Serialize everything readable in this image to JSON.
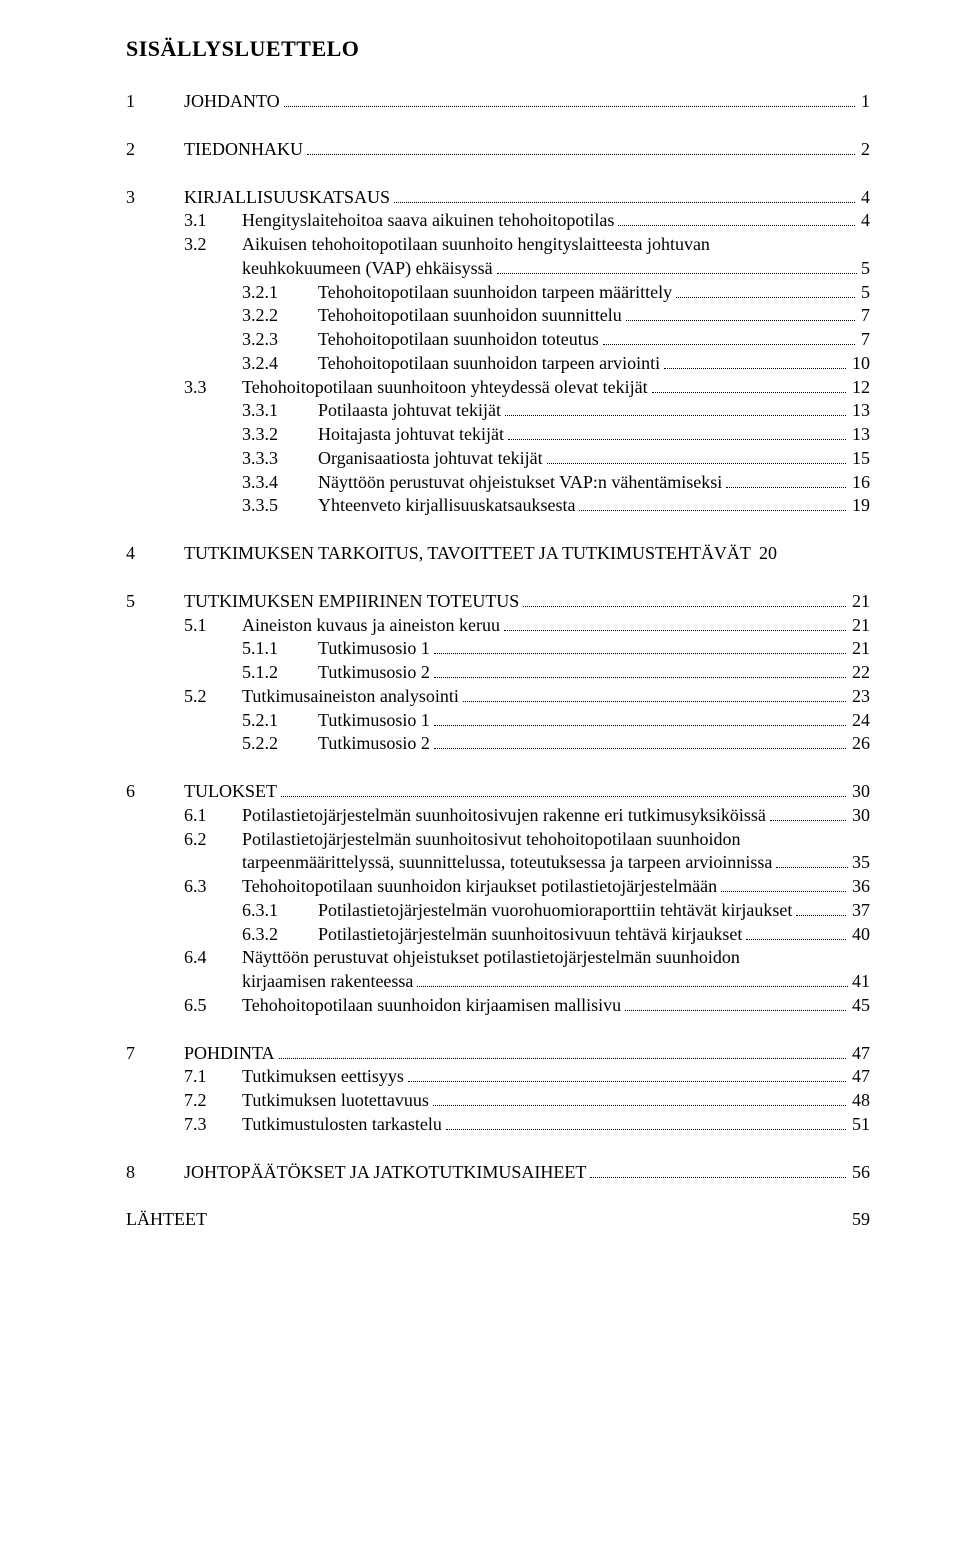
{
  "title": "SISÄLLYSLUETTELO",
  "entries": [
    {
      "type": "item",
      "level": 1,
      "num": "1",
      "label": "JOHDANTO",
      "page": "1"
    },
    {
      "type": "gap"
    },
    {
      "type": "item",
      "level": 1,
      "num": "2",
      "label": "TIEDONHAKU",
      "page": "2"
    },
    {
      "type": "gap"
    },
    {
      "type": "item",
      "level": 1,
      "num": "3",
      "label": "KIRJALLISUUSKATSAUS",
      "page": "4"
    },
    {
      "type": "item",
      "level": 2,
      "num": "3.1",
      "label": "Hengityslaitehoitoa saava aikuinen tehohoitopotilas",
      "page": "4"
    },
    {
      "type": "item-first",
      "level": 2,
      "num": "3.2",
      "label": "Aikuisen tehohoitopotilaan suunhoito hengityslaitteesta johtuvan"
    },
    {
      "type": "item-cont",
      "level": 2,
      "label": "keuhkokuumeen (VAP) ehkäisyssä",
      "page": "5"
    },
    {
      "type": "item",
      "level": 3,
      "num": "3.2.1",
      "label": "Tehohoitopotilaan suunhoidon tarpeen määrittely",
      "page": "5"
    },
    {
      "type": "item",
      "level": 3,
      "num": "3.2.2",
      "label": "Tehohoitopotilaan suunhoidon suunnittelu",
      "page": "7"
    },
    {
      "type": "item",
      "level": 3,
      "num": "3.2.3",
      "label": "Tehohoitopotilaan suunhoidon toteutus",
      "page": "7"
    },
    {
      "type": "item",
      "level": 3,
      "num": "3.2.4",
      "label": "Tehohoitopotilaan suunhoidon tarpeen arviointi",
      "page": "10"
    },
    {
      "type": "item",
      "level": 2,
      "num": "3.3",
      "label": "Tehohoitopotilaan suunhoitoon yhteydessä olevat tekijät",
      "page": "12"
    },
    {
      "type": "item",
      "level": 3,
      "num": "3.3.1",
      "label": "Potilaasta johtuvat tekijät",
      "page": "13"
    },
    {
      "type": "item",
      "level": 3,
      "num": "3.3.2",
      "label": "Hoitajasta johtuvat tekijät",
      "page": "13"
    },
    {
      "type": "item",
      "level": 3,
      "num": "3.3.3",
      "label": "Organisaatiosta johtuvat tekijät",
      "page": "15"
    },
    {
      "type": "item",
      "level": 3,
      "num": "3.3.4",
      "label": "Näyttöön perustuvat ohjeistukset VAP:n vähentämiseksi",
      "page": "16"
    },
    {
      "type": "item",
      "level": 3,
      "num": "3.3.5",
      "label": "Yhteenveto kirjallisuuskatsauksesta",
      "page": "19"
    },
    {
      "type": "gap"
    },
    {
      "type": "item-noleader",
      "level": 1,
      "num": "4",
      "label": "TUTKIMUKSEN TARKOITUS, TAVOITTEET JA TUTKIMUSTEHTÄVÄT",
      "page": "20"
    },
    {
      "type": "gap"
    },
    {
      "type": "item",
      "level": 1,
      "num": "5",
      "label": "TUTKIMUKSEN EMPIIRINEN TOTEUTUS",
      "page": "21"
    },
    {
      "type": "item",
      "level": 2,
      "num": "5.1",
      "label": "Aineiston kuvaus ja aineiston keruu",
      "page": "21"
    },
    {
      "type": "item",
      "level": 3,
      "num": "5.1.1",
      "label": "Tutkimusosio 1",
      "page": "21"
    },
    {
      "type": "item",
      "level": 3,
      "num": "5.1.2",
      "label": "Tutkimusosio 2",
      "page": "22"
    },
    {
      "type": "item",
      "level": 2,
      "num": "5.2",
      "label": "Tutkimusaineiston analysointi",
      "page": "23"
    },
    {
      "type": "item",
      "level": 3,
      "num": "5.2.1",
      "label": "Tutkimusosio 1",
      "page": "24"
    },
    {
      "type": "item",
      "level": 3,
      "num": "5.2.2",
      "label": "Tutkimusosio 2",
      "page": "26"
    },
    {
      "type": "gap"
    },
    {
      "type": "item",
      "level": 1,
      "num": "6",
      "label": "TULOKSET",
      "page": "30"
    },
    {
      "type": "item",
      "level": 2,
      "num": "6.1",
      "label": "Potilastietojärjestelmän suunhoitosivujen rakenne eri tutkimusyksiköissä",
      "page": "30"
    },
    {
      "type": "item-first",
      "level": 2,
      "num": "6.2",
      "label": "Potilastietojärjestelmän suunhoitosivut tehohoitopotilaan suunhoidon"
    },
    {
      "type": "item-cont",
      "level": 2,
      "label": "tarpeenmäärittelyssä, suunnittelussa, toteutuksessa ja tarpeen arvioinnissa",
      "page": "35"
    },
    {
      "type": "item",
      "level": 2,
      "num": "6.3",
      "label": "Tehohoitopotilaan suunhoidon kirjaukset potilastietojärjestelmään",
      "page": "36"
    },
    {
      "type": "item",
      "level": 3,
      "num": "6.3.1",
      "label": "Potilastietojärjestelmän vuorohuomioraporttiin tehtävät kirjaukset",
      "page": "37"
    },
    {
      "type": "item",
      "level": 3,
      "num": "6.3.2",
      "label": "Potilastietojärjestelmän suunhoitosivuun tehtävä kirjaukset",
      "page": "40"
    },
    {
      "type": "item-first",
      "level": 2,
      "num": "6.4",
      "label": "Näyttöön perustuvat ohjeistukset potilastietojärjestelmän suunhoidon"
    },
    {
      "type": "item-cont",
      "level": 2,
      "label": "kirjaamisen rakenteessa",
      "page": "41"
    },
    {
      "type": "item",
      "level": 2,
      "num": "6.5",
      "label": "Tehohoitopotilaan suunhoidon kirjaamisen mallisivu",
      "page": "45"
    },
    {
      "type": "gap"
    },
    {
      "type": "item",
      "level": 1,
      "num": "7",
      "label": "POHDINTA",
      "page": "47"
    },
    {
      "type": "item",
      "level": 2,
      "num": "7.1",
      "label": "Tutkimuksen eettisyys",
      "page": "47"
    },
    {
      "type": "item",
      "level": 2,
      "num": "7.2",
      "label": "Tutkimuksen luotettavuus",
      "page": "48"
    },
    {
      "type": "item",
      "level": 2,
      "num": "7.3",
      "label": "Tutkimustulosten tarkastelu",
      "page": "51"
    },
    {
      "type": "gap"
    },
    {
      "type": "item",
      "level": 1,
      "num": "8",
      "label": "JOHTOPÄÄTÖKSET JA JATKOTUTKIMUSAIHEET",
      "page": "56"
    },
    {
      "type": "gap"
    },
    {
      "type": "simple",
      "level": 1,
      "label": "LÄHTEET",
      "page": "59"
    }
  ]
}
